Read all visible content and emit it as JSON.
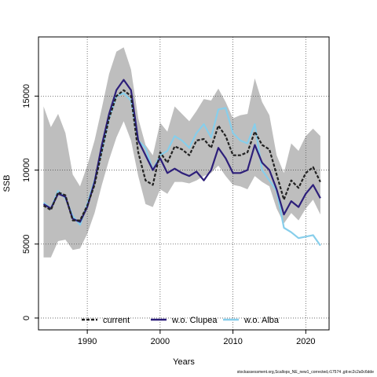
{
  "chart_data": {
    "type": "line",
    "title": "",
    "xlabel": "Years",
    "ylabel": "SSB",
    "xlim": [
      1983.3,
      2023.2
    ],
    "ylim": [
      -800,
      19000
    ],
    "xticks": [
      1990,
      2000,
      2010,
      2020
    ],
    "yticks": [
      0,
      5000,
      10000,
      15000
    ],
    "x": [
      1984,
      1985,
      1986,
      1987,
      1988,
      1989,
      1990,
      1991,
      1992,
      1993,
      1994,
      1995,
      1996,
      1997,
      1998,
      1999,
      2000,
      2001,
      2002,
      2003,
      2004,
      2005,
      2006,
      2007,
      2008,
      2009,
      2010,
      2011,
      2012,
      2013,
      2014,
      2015,
      2016,
      2017,
      2018,
      2019,
      2020,
      2021,
      2022
    ],
    "band": {
      "upper": [
        14300,
        12900,
        13800,
        12500,
        9700,
        8900,
        10300,
        12000,
        14200,
        16500,
        18000,
        18300,
        16800,
        13500,
        11700,
        11000,
        13200,
        12600,
        14300,
        13800,
        13300,
        14000,
        14800,
        14700,
        15500,
        14600,
        13500,
        13700,
        13800,
        16200,
        14600,
        13700,
        11000,
        9800,
        11800,
        11300,
        12300,
        12800,
        12300
      ],
      "lower": [
        4100,
        4100,
        5200,
        5300,
        4600,
        4700,
        5700,
        7100,
        9000,
        10700,
        12200,
        13300,
        12000,
        9600,
        7700,
        7500,
        8700,
        8400,
        9200,
        9200,
        9100,
        9300,
        9600,
        9800,
        10300,
        9600,
        9000,
        8900,
        8700,
        9600,
        9200,
        8900,
        7400,
        6400,
        7100,
        6600,
        7400,
        8000,
        7000
      ]
    },
    "series": [
      {
        "name": "current",
        "color": "#222222",
        "dash": true,
        "values": [
          7600,
          7300,
          8500,
          8300,
          6600,
          6600,
          7600,
          9000,
          11300,
          13500,
          15000,
          15400,
          15000,
          11200,
          9300,
          9000,
          11200,
          10500,
          11600,
          11400,
          11000,
          12000,
          12100,
          11500,
          13000,
          12300,
          11000,
          11000,
          11200,
          12600,
          11700,
          11400,
          9700,
          8000,
          9300,
          8800,
          9800,
          10200,
          9200
        ]
      },
      {
        "name": "w.o. Clupea",
        "color": "#2d1f7a",
        "dash": false,
        "values": [
          7700,
          7400,
          8400,
          8200,
          6700,
          6500,
          7500,
          9200,
          11700,
          13800,
          15400,
          16100,
          15400,
          12000,
          11000,
          10000,
          10800,
          9800,
          10100,
          9800,
          9600,
          9900,
          9300,
          10000,
          11500,
          10800,
          9800,
          9800,
          10000,
          11700,
          10500,
          10000,
          8700,
          7000,
          7900,
          7500,
          8400,
          9000,
          8100
        ]
      },
      {
        "name": "w.o. Alba",
        "color": "#87ceeb",
        "dash": false,
        "values": [
          7800,
          7400,
          8600,
          8100,
          6900,
          6300,
          7700,
          9300,
          11300,
          13500,
          15000,
          15200,
          14700,
          12000,
          11500,
          10000,
          11000,
          11300,
          12300,
          12000,
          11500,
          12500,
          13100,
          12200,
          14100,
          14200,
          12500,
          12000,
          11800,
          13100,
          10000,
          9300,
          8600,
          6100,
          5800,
          5400,
          5500,
          5600,
          4900
        ]
      }
    ],
    "legend": {
      "placement": "bottom-center"
    }
  },
  "footer_note": "stockassessment.org,Scallops_NE_new1_corrected,r17574 ,git:ec2c2a0c6dde"
}
